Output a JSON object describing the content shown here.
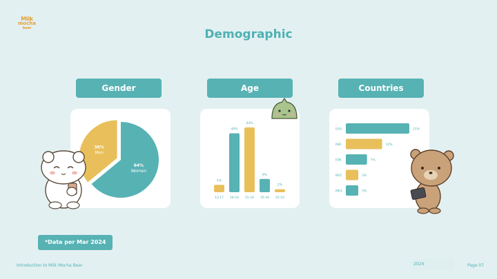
{
  "logo": {
    "line1": "Milk",
    "line2": "mocha",
    "line3": "bear"
  },
  "title": "Demographic",
  "tabs": {
    "gender": "Gender",
    "age": "Age",
    "countries": "Countries"
  },
  "note": "*Data per Mar 2024",
  "footer": {
    "left": "Introduction to Milk Mocha Bear",
    "year": "2024",
    "page": "Page 07"
  },
  "colors": {
    "teal": "#57b2b4",
    "yellow": "#e8bf5a",
    "background": "#e3f0f1",
    "card": "#ffffff"
  },
  "chart_data": [
    {
      "type": "pie",
      "title": "Gender",
      "slices": [
        {
          "label": "Women",
          "value_label": "64%",
          "value": 64,
          "color": "#57b2b4"
        },
        {
          "label": "Men",
          "value_label": "36%",
          "value": 36,
          "color": "#e8bf5a"
        }
      ]
    },
    {
      "type": "bar",
      "title": "Age",
      "categories": [
        "13-17",
        "18-24",
        "25-34",
        "35-44",
        "45-54"
      ],
      "values": [
        5,
        40,
        44,
        9,
        2
      ],
      "value_labels": [
        "5%",
        "40%",
        "44%",
        "9%",
        "2%"
      ],
      "colors": [
        "#e8bf5a",
        "#57b2b4",
        "#e8bf5a",
        "#57b2b4",
        "#e8bf5a"
      ],
      "ylim": [
        0,
        44
      ]
    },
    {
      "type": "bar",
      "orientation": "horizontal",
      "title": "Countries",
      "categories": [
        "USA",
        "IND",
        "ION",
        "BRZ",
        "MEX"
      ],
      "values": [
        21,
        12,
        7,
        3,
        3
      ],
      "value_labels": [
        "21%",
        "12%",
        "7%",
        "3%",
        "3%"
      ],
      "colors": [
        "#57b2b4",
        "#e8bf5a",
        "#57b2b4",
        "#e8bf5a",
        "#57b2b4"
      ],
      "xlim": [
        0,
        21
      ]
    }
  ]
}
